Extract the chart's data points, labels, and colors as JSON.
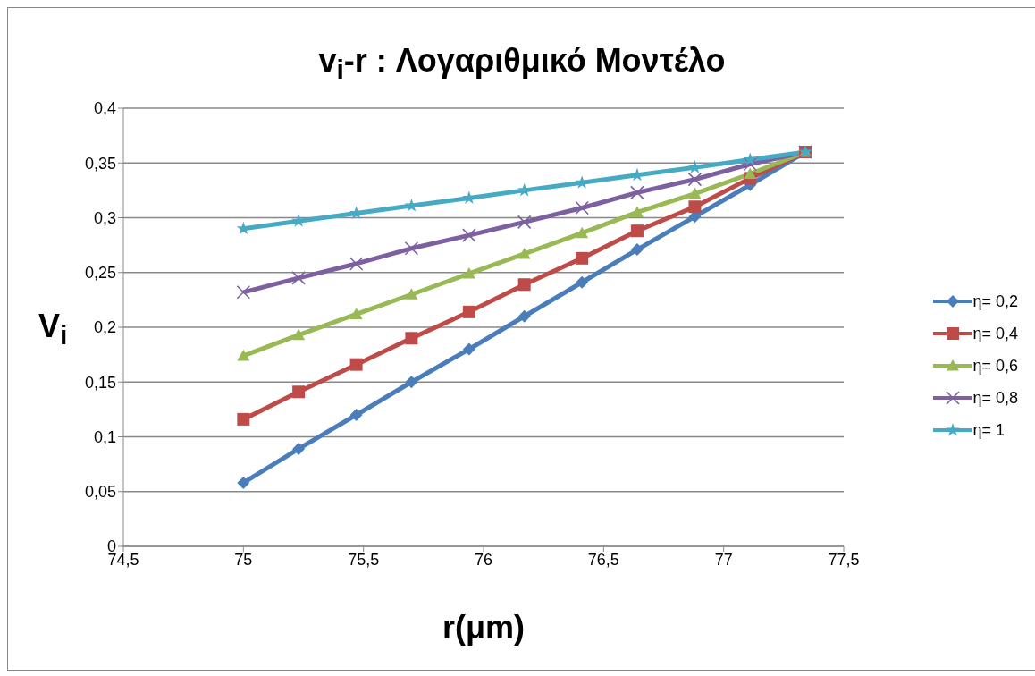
{
  "chart_data": {
    "type": "line",
    "title": "v$_{i}$-r : Λογαριθμικό Μοντέλο",
    "xlabel": "r(μm)",
    "ylabel": "V$_{i}$",
    "x": [
      75,
      75.23,
      75.47,
      75.7,
      75.94,
      76.17,
      76.41,
      76.64,
      76.88,
      77.11,
      77.34
    ],
    "series": [
      {
        "name": "η= 0,2",
        "color": "#4a7ebb",
        "marker": "diamond",
        "values": [
          0.058,
          0.089,
          0.12,
          0.15,
          0.18,
          0.21,
          0.241,
          0.271,
          0.301,
          0.33,
          0.36
        ]
      },
      {
        "name": "η= 0,4",
        "color": "#be4b48",
        "marker": "square",
        "values": [
          0.116,
          0.141,
          0.166,
          0.19,
          0.214,
          0.239,
          0.263,
          0.288,
          0.31,
          0.336,
          0.36
        ]
      },
      {
        "name": "η= 0,6",
        "color": "#98b954",
        "marker": "triangle",
        "values": [
          0.174,
          0.193,
          0.212,
          0.23,
          0.249,
          0.267,
          0.286,
          0.305,
          0.322,
          0.34,
          0.36
        ]
      },
      {
        "name": "η= 0,8",
        "color": "#7d60a0",
        "marker": "cross",
        "values": [
          0.232,
          0.245,
          0.258,
          0.272,
          0.284,
          0.296,
          0.309,
          0.323,
          0.335,
          0.349,
          0.36
        ]
      },
      {
        "name": "η= 1",
        "color": "#46aac5",
        "marker": "star",
        "values": [
          0.29,
          0.297,
          0.304,
          0.311,
          0.318,
          0.325,
          0.332,
          0.339,
          0.346,
          0.353,
          0.36
        ]
      }
    ],
    "xlim": [
      74.5,
      77.5
    ],
    "xticks": [
      {
        "value": 74.5,
        "label": "74,5"
      },
      75,
      {
        "value": 75.5,
        "label": "75,5"
      },
      76,
      {
        "value": 76.5,
        "label": "76,5"
      },
      77,
      {
        "value": 77.5,
        "label": "77,5"
      }
    ],
    "ylim": [
      0,
      0.4
    ],
    "yticks": [
      0,
      {
        "value": 0.05,
        "label": "0,05"
      },
      {
        "value": 0.1,
        "label": "0,1"
      },
      {
        "value": 0.15,
        "label": "0,15"
      },
      {
        "value": 0.2,
        "label": "0,2"
      },
      {
        "value": 0.25,
        "label": "0,25"
      },
      {
        "value": 0.3,
        "label": "0,3"
      },
      {
        "value": 0.35,
        "label": "0,35"
      },
      {
        "value": 0.4,
        "label": "0,4"
      }
    ],
    "grid": "y",
    "legend": "right",
    "line_style": "solid"
  }
}
